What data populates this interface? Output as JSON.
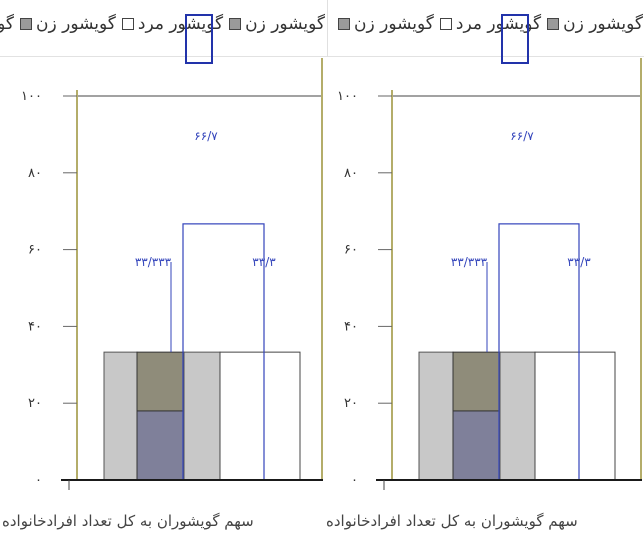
{
  "legend": {
    "left_items": [
      "گویشور زن",
      "گویشور مرد",
      "گویشور زن",
      "گویشور مرد",
      "گو"
    ],
    "right_items": [
      "گویشور زن",
      "گویشور مرد",
      "گویشور زن"
    ]
  },
  "colors": {
    "female_fill": "#c8c8c8",
    "male_fill": "#ffffff",
    "dark_fill_top": "#8f8c7a",
    "dark_fill_bottom": "#7f809a",
    "outline_blue": "#3344bb",
    "axis_olive": "#b4ad6a"
  },
  "category_labels": {
    "left": "سهم گویشوران به کل تعداد افرادخانواده",
    "right": "سهم گویشوران به کل تعداد افرادخانواده"
  },
  "chart_data": [
    {
      "type": "bar",
      "ylim": [
        0,
        100
      ],
      "yticks": [
        "۰",
        "۲۰",
        "۴۰",
        "۶۰",
        "۸۰",
        "۱۰۰"
      ],
      "series": [
        {
          "name": "گویشور زن",
          "values": [
            33.3
          ]
        },
        {
          "name": "گویشور مرد",
          "values": [
            33.3
          ]
        }
      ],
      "highlight_value": 66.7,
      "data_labels": [
        "۶۶/۷",
        "۳۳/۳۳۳",
        "۳۳/۳"
      ]
    },
    {
      "type": "bar",
      "ylim": [
        0,
        100
      ],
      "yticks": [
        "۰",
        "۲۰",
        "۴۰",
        "۶۰",
        "۸۰",
        "۱۰۰"
      ],
      "series": [
        {
          "name": "گویشور زن",
          "values": [
            33.3
          ]
        },
        {
          "name": "گویشور مرد",
          "values": [
            33.3
          ]
        }
      ],
      "highlight_value": 66.7,
      "data_labels": [
        "۶۶/۷",
        "۳۳/۳۳۳",
        "۳۳/۳"
      ]
    }
  ]
}
